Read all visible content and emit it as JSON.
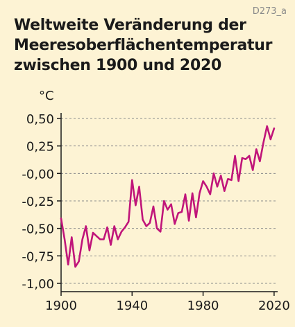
{
  "header": {
    "code": "D273_a",
    "title_lines": [
      "Weltweite Veränderung der",
      "Meeresoberflächentemperatur",
      "zwischen 1900 und 2020"
    ]
  },
  "chart_data": {
    "type": "line",
    "title": "Weltweite Veränderung der Meeresoberflächentemperatur zwischen 1900 und 2020",
    "ylabel": "°C",
    "xlabel": "",
    "xlim": [
      1900,
      2022
    ],
    "ylim": [
      -1.0,
      0.5
    ],
    "x_ticks": [
      1900,
      1940,
      1980,
      2020
    ],
    "y_ticks": [
      {
        "value": 0.5,
        "label": "0,50"
      },
      {
        "value": 0.25,
        "label": "0,25"
      },
      {
        "value": 0.0,
        "label": "-0,00"
      },
      {
        "value": -0.25,
        "label": "-0,25"
      },
      {
        "value": -0.5,
        "label": "-0,50"
      },
      {
        "value": -0.75,
        "label": "-0,75"
      },
      {
        "value": -1.0,
        "label": "-1,00"
      }
    ],
    "grid": "horizontal dashed",
    "colors": {
      "line": "#c0157a",
      "axis": "#1a1a1a",
      "grid": "#8c8c8c",
      "background": "#fdf3d4"
    },
    "series": [
      {
        "name": "",
        "x": [
          1900,
          1902,
          1904,
          1906,
          1908,
          1910,
          1912,
          1914,
          1916,
          1918,
          1920,
          1922,
          1924,
          1926,
          1928,
          1930,
          1932,
          1934,
          1936,
          1938,
          1940,
          1942,
          1944,
          1946,
          1948,
          1950,
          1952,
          1954,
          1956,
          1958,
          1960,
          1962,
          1964,
          1966,
          1968,
          1970,
          1972,
          1974,
          1976,
          1978,
          1980,
          1982,
          1984,
          1986,
          1988,
          1990,
          1992,
          1994,
          1996,
          1998,
          2000,
          2002,
          2004,
          2006,
          2008,
          2010,
          2012,
          2014,
          2016,
          2018,
          2020
        ],
        "values": [
          -0.41,
          -0.6,
          -0.83,
          -0.58,
          -0.85,
          -0.8,
          -0.6,
          -0.48,
          -0.7,
          -0.54,
          -0.57,
          -0.6,
          -0.6,
          -0.49,
          -0.65,
          -0.48,
          -0.6,
          -0.53,
          -0.49,
          -0.44,
          -0.06,
          -0.29,
          -0.12,
          -0.42,
          -0.48,
          -0.45,
          -0.3,
          -0.5,
          -0.53,
          -0.25,
          -0.33,
          -0.28,
          -0.46,
          -0.36,
          -0.35,
          -0.19,
          -0.43,
          -0.18,
          -0.4,
          -0.18,
          -0.07,
          -0.12,
          -0.19,
          0.0,
          -0.12,
          -0.02,
          -0.16,
          -0.05,
          -0.06,
          0.16,
          -0.07,
          0.14,
          0.13,
          0.16,
          0.03,
          0.22,
          0.11,
          0.28,
          0.43,
          0.31,
          0.41
        ]
      }
    ]
  }
}
